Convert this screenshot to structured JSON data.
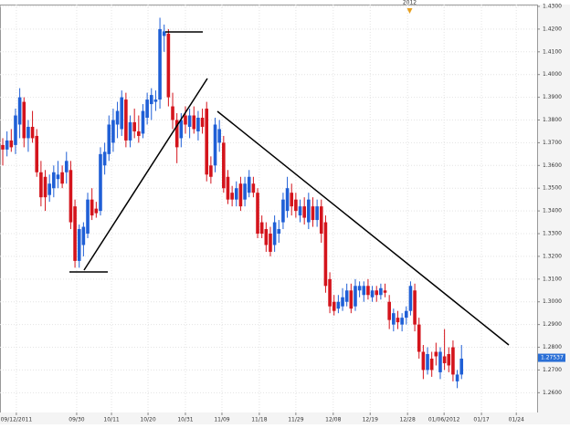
{
  "chart_data": {
    "type": "candlestick",
    "up_color": "#1f5fd6",
    "down_color": "#d4141c",
    "candles": [
      [
        1.369,
        1.372,
        1.36,
        1.367
      ],
      [
        1.367,
        1.375,
        1.364,
        1.371
      ],
      [
        1.371,
        1.376,
        1.366,
        1.368
      ],
      [
        1.369,
        1.385,
        1.365,
        1.382
      ],
      [
        1.378,
        1.394,
        1.372,
        1.39
      ],
      [
        1.388,
        1.39,
        1.368,
        1.372
      ],
      [
        1.372,
        1.38,
        1.366,
        1.377
      ],
      [
        1.377,
        1.384,
        1.37,
        1.372
      ],
      [
        1.373,
        1.376,
        1.355,
        1.357
      ],
      [
        1.357,
        1.362,
        1.342,
        1.346
      ],
      [
        1.355,
        1.358,
        1.34,
        1.346
      ],
      [
        1.347,
        1.356,
        1.344,
        1.352
      ],
      [
        1.35,
        1.36,
        1.346,
        1.357
      ],
      [
        1.354,
        1.362,
        1.35,
        1.356
      ],
      [
        1.357,
        1.36,
        1.35,
        1.352
      ],
      [
        1.357,
        1.366,
        1.352,
        1.362
      ],
      [
        1.358,
        1.362,
        1.332,
        1.335
      ],
      [
        1.342,
        1.345,
        1.315,
        1.318
      ],
      [
        1.318,
        1.334,
        1.315,
        1.332
      ],
      [
        1.325,
        1.335,
        1.32,
        1.333
      ],
      [
        1.33,
        1.348,
        1.328,
        1.345
      ],
      [
        1.345,
        1.35,
        1.336,
        1.338
      ],
      [
        1.341,
        1.344,
        1.337,
        1.339
      ],
      [
        1.34,
        1.368,
        1.338,
        1.365
      ],
      [
        1.36,
        1.37,
        1.356,
        1.366
      ],
      [
        1.365,
        1.382,
        1.362,
        1.378
      ],
      [
        1.37,
        1.385,
        1.366,
        1.38
      ],
      [
        1.378,
        1.388,
        1.372,
        1.384
      ],
      [
        1.376,
        1.393,
        1.373,
        1.39
      ],
      [
        1.389,
        1.392,
        1.368,
        1.371
      ],
      [
        1.371,
        1.382,
        1.368,
        1.379
      ],
      [
        1.379,
        1.385,
        1.372,
        1.375
      ],
      [
        1.375,
        1.382,
        1.37,
        1.373
      ],
      [
        1.374,
        1.387,
        1.372,
        1.384
      ],
      [
        1.381,
        1.392,
        1.378,
        1.389
      ],
      [
        1.387,
        1.394,
        1.38,
        1.391
      ],
      [
        1.388,
        1.393,
        1.384,
        1.389
      ],
      [
        1.389,
        1.425,
        1.385,
        1.42
      ],
      [
        1.417,
        1.422,
        1.41,
        1.419
      ],
      [
        1.418,
        1.42,
        1.386,
        1.39
      ],
      [
        1.386,
        1.392,
        1.376,
        1.38
      ],
      [
        1.38,
        1.383,
        1.361,
        1.368
      ],
      [
        1.372,
        1.383,
        1.368,
        1.38
      ],
      [
        1.382,
        1.386,
        1.374,
        1.378
      ],
      [
        1.377,
        1.385,
        1.372,
        1.382
      ],
      [
        1.382,
        1.386,
        1.374,
        1.376
      ],
      [
        1.375,
        1.384,
        1.371,
        1.381
      ],
      [
        1.381,
        1.385,
        1.374,
        1.377
      ],
      [
        1.385,
        1.388,
        1.353,
        1.356
      ],
      [
        1.36,
        1.364,
        1.352,
        1.355
      ],
      [
        1.36,
        1.381,
        1.357,
        1.378
      ],
      [
        1.37,
        1.38,
        1.366,
        1.376
      ],
      [
        1.37,
        1.373,
        1.348,
        1.35
      ],
      [
        1.355,
        1.358,
        1.343,
        1.345
      ],
      [
        1.348,
        1.351,
        1.342,
        1.345
      ],
      [
        1.345,
        1.353,
        1.342,
        1.35
      ],
      [
        1.352,
        1.355,
        1.34,
        1.342
      ],
      [
        1.345,
        1.355,
        1.342,
        1.352
      ],
      [
        1.348,
        1.358,
        1.346,
        1.355
      ],
      [
        1.352,
        1.355,
        1.346,
        1.348
      ],
      [
        1.348,
        1.35,
        1.328,
        1.33
      ],
      [
        1.335,
        1.338,
        1.328,
        1.33
      ],
      [
        1.332,
        1.335,
        1.322,
        1.325
      ],
      [
        1.33,
        1.333,
        1.32,
        1.322
      ],
      [
        1.325,
        1.338,
        1.322,
        1.335
      ],
      [
        1.33,
        1.336,
        1.326,
        1.332
      ],
      [
        1.335,
        1.348,
        1.332,
        1.345
      ],
      [
        1.34,
        1.355,
        1.337,
        1.35
      ],
      [
        1.348,
        1.352,
        1.338,
        1.342
      ],
      [
        1.345,
        1.348,
        1.337,
        1.34
      ],
      [
        1.338,
        1.345,
        1.335,
        1.342
      ],
      [
        1.342,
        1.346,
        1.334,
        1.337
      ],
      [
        1.335,
        1.348,
        1.332,
        1.345
      ],
      [
        1.342,
        1.346,
        1.333,
        1.336
      ],
      [
        1.336,
        1.345,
        1.333,
        1.342
      ],
      [
        1.342,
        1.345,
        1.326,
        1.33
      ],
      [
        1.335,
        1.338,
        1.304,
        1.307
      ],
      [
        1.31,
        1.313,
        1.295,
        1.298
      ],
      [
        1.3,
        1.303,
        1.294,
        1.296
      ],
      [
        1.297,
        1.303,
        1.295,
        1.3
      ],
      [
        1.298,
        1.306,
        1.296,
        1.302
      ],
      [
        1.3,
        1.308,
        1.298,
        1.305
      ],
      [
        1.305,
        1.308,
        1.295,
        1.297
      ],
      [
        1.298,
        1.31,
        1.296,
        1.307
      ],
      [
        1.305,
        1.309,
        1.302,
        1.307
      ],
      [
        1.303,
        1.309,
        1.3,
        1.307
      ],
      [
        1.307,
        1.31,
        1.301,
        1.303
      ],
      [
        1.302,
        1.307,
        1.3,
        1.305
      ],
      [
        1.305,
        1.307,
        1.3,
        1.303
      ],
      [
        1.303,
        1.308,
        1.301,
        1.306
      ],
      [
        1.305,
        1.308,
        1.302,
        1.304
      ],
      [
        1.3,
        1.303,
        1.288,
        1.292
      ],
      [
        1.29,
        1.297,
        1.287,
        1.295
      ],
      [
        1.293,
        1.296,
        1.288,
        1.291
      ],
      [
        1.29,
        1.295,
        1.287,
        1.293
      ],
      [
        1.293,
        1.298,
        1.29,
        1.296
      ],
      [
        1.296,
        1.309,
        1.294,
        1.307
      ],
      [
        1.305,
        1.308,
        1.287,
        1.29
      ],
      [
        1.29,
        1.293,
        1.275,
        1.278
      ],
      [
        1.278,
        1.281,
        1.266,
        1.27
      ],
      [
        1.27,
        1.28,
        1.268,
        1.277
      ],
      [
        1.275,
        1.278,
        1.267,
        1.27
      ],
      [
        1.278,
        1.282,
        1.272,
        1.276
      ],
      [
        1.269,
        1.28,
        1.266,
        1.278
      ],
      [
        1.276,
        1.288,
        1.27,
        1.273
      ],
      [
        1.277,
        1.28,
        1.269,
        1.272
      ],
      [
        1.28,
        1.283,
        1.265,
        1.268
      ],
      [
        1.265,
        1.27,
        1.262,
        1.268
      ],
      [
        1.268,
        1.281,
        1.266,
        1.275
      ]
    ],
    "xlim": [
      -0.65,
      125.8
    ],
    "xticks": [
      {
        "value": 3.2,
        "label": "09/12/2011"
      },
      {
        "value": 17.4,
        "label": "09/30"
      },
      {
        "value": 25.6,
        "label": "10/11"
      },
      {
        "value": 34.2,
        "label": "10/20"
      },
      {
        "value": 43,
        "label": "10/31"
      },
      {
        "value": 51.6,
        "label": "11/09"
      },
      {
        "value": 60.4,
        "label": "11/18"
      },
      {
        "value": 69,
        "label": "11/29"
      },
      {
        "value": 77.8,
        "label": "12/08"
      },
      {
        "value": 86.5,
        "label": "12/19"
      },
      {
        "value": 95.3,
        "label": "12/28"
      },
      {
        "value": 103.9,
        "label": "01/06/2012"
      },
      {
        "value": 112.7,
        "label": "01/17"
      },
      {
        "value": 120.9,
        "label": "01/24"
      }
    ],
    "ylim": [
      1.2513,
      1.4308
    ],
    "yticks": [
      {
        "value": 1.26,
        "label": "1.2600"
      },
      {
        "value": 1.27,
        "label": "1.2700"
      },
      {
        "value": 1.28,
        "label": "1.2800"
      },
      {
        "value": 1.29,
        "label": "1.2900"
      },
      {
        "value": 1.3,
        "label": "1.3000"
      },
      {
        "value": 1.31,
        "label": "1.3100"
      },
      {
        "value": 1.32,
        "label": "1.3200"
      },
      {
        "value": 1.33,
        "label": "1.3300"
      },
      {
        "value": 1.34,
        "label": "1.3400"
      },
      {
        "value": 1.35,
        "label": "1.3500"
      },
      {
        "value": 1.36,
        "label": "1.3600"
      },
      {
        "value": 1.37,
        "label": "1.3700"
      },
      {
        "value": 1.38,
        "label": "1.3800"
      },
      {
        "value": 1.39,
        "label": "1.3900"
      },
      {
        "value": 1.4,
        "label": "1.4000"
      },
      {
        "value": 1.41,
        "label": "1.4100"
      },
      {
        "value": 1.42,
        "label": "1.4200"
      },
      {
        "value": 1.43,
        "label": "1.4300"
      }
    ],
    "last_price": 1.27537,
    "year_marker": {
      "value": 95.8,
      "label": "2012"
    },
    "grid": true
  }
}
